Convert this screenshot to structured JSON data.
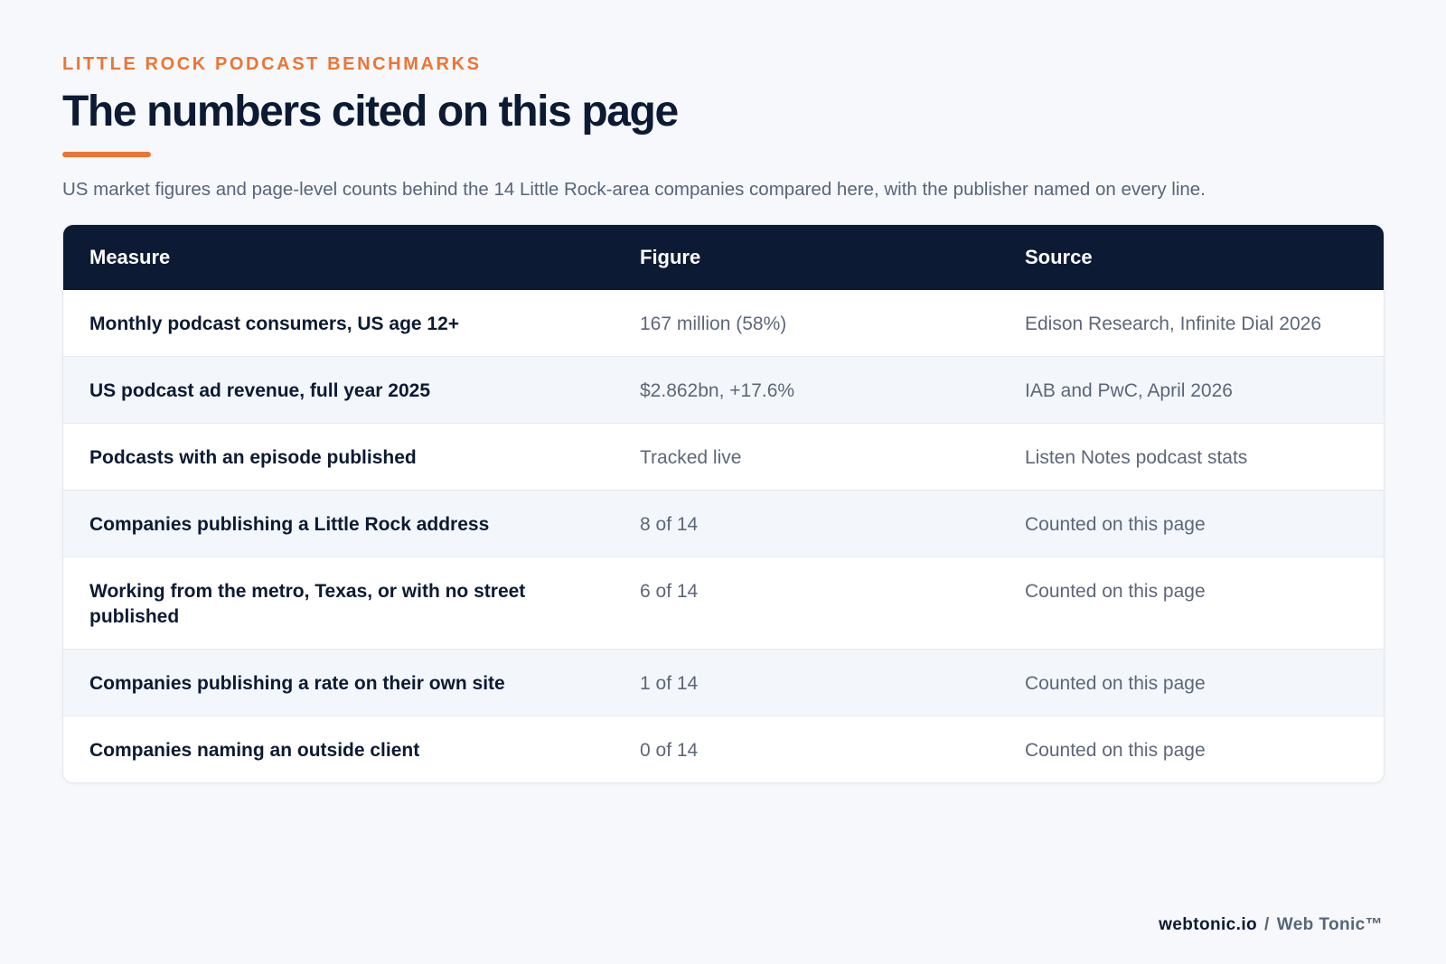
{
  "header": {
    "eyebrow": "LITTLE ROCK PODCAST BENCHMARKS",
    "title": "The numbers cited on this page",
    "subtitle": "US market figures and page-level counts behind the 14 Little Rock-area companies compared here, with the publisher named on every line."
  },
  "colors": {
    "accent": "#ee7433",
    "header_bg": "#0c1a33",
    "page_bg": "#f6f8fb",
    "row_alt_bg": "#f3f6fa",
    "muted_text": "#5c6779"
  },
  "table": {
    "columns": [
      "Measure",
      "Figure",
      "Source"
    ],
    "rows": [
      [
        "Monthly podcast consumers, US age 12+",
        "167 million (58%)",
        "Edison Research, Infinite Dial 2026"
      ],
      [
        "US podcast ad revenue, full year 2025",
        "$2.862bn, +17.6%",
        "IAB and PwC, April 2026"
      ],
      [
        "Podcasts with an episode published",
        "Tracked live",
        "Listen Notes podcast stats"
      ],
      [
        "Companies publishing a Little Rock address",
        "8 of 14",
        "Counted on this page"
      ],
      [
        "Working from the metro, Texas, or with no street published",
        "6 of 14",
        "Counted on this page"
      ],
      [
        "Companies publishing a rate on their own site",
        "1 of 14",
        "Counted on this page"
      ],
      [
        "Companies naming an outside client",
        "0 of 14",
        "Counted on this page"
      ]
    ]
  },
  "footer": {
    "domain": "webtonic.io",
    "separator": "/",
    "brand": "Web Tonic™"
  }
}
